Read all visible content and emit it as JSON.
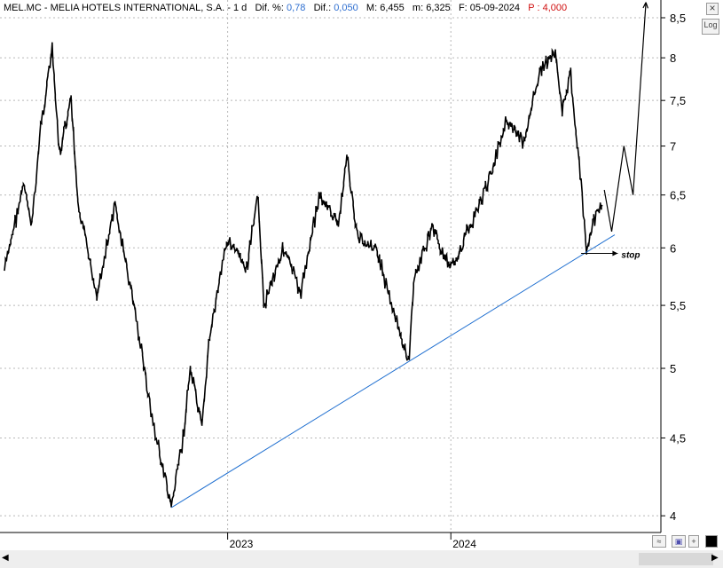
{
  "header": {
    "symbol": "MEL.MC",
    "name": "MELIA HOTELS INTERNATIONAL, S.A.",
    "period": "1 d",
    "dif_pct_label": "Dif. %:",
    "dif_pct_value": "0,78",
    "dif_label": "Dif.:",
    "dif_value": "0,050",
    "max_label": "M:",
    "max_value": "6,455",
    "min_label": "m:",
    "min_value": "6,325",
    "date_label": "F:",
    "date_value": "05-09-2024",
    "price_label": "P :",
    "price_value": "4,000"
  },
  "toolbar": {
    "log_label": "Log",
    "close_icon": "close-icon"
  },
  "colors": {
    "price": "#000000",
    "trendline": "#1f6fd0",
    "grid": "#b8b8b8",
    "text_blue": "#2f6fd0",
    "text_red": "#d01010"
  },
  "chart_data": {
    "type": "line",
    "scale": "log",
    "x_axis": {
      "ticks": [
        "2023",
        "2024"
      ]
    },
    "y_axis": {
      "ticks": [
        "4",
        "4,5",
        "5",
        "5,5",
        "6",
        "6,5",
        "7",
        "7,5",
        "8",
        "8,5"
      ],
      "ylim": [
        3.9,
        8.5
      ]
    },
    "grid": true,
    "series": [
      {
        "values": [
          {
            "x": "2022-01",
            "y": 5.8
          },
          {
            "x": "2022-02",
            "y": 6.6
          },
          {
            "x": "2022-02-15",
            "y": 6.2
          },
          {
            "x": "2022-03",
            "y": 7.2
          },
          {
            "x": "2022-03-20",
            "y": 8.1
          },
          {
            "x": "2022-04",
            "y": 6.9
          },
          {
            "x": "2022-04-20",
            "y": 7.5
          },
          {
            "x": "2022-05",
            "y": 6.4
          },
          {
            "x": "2022-06",
            "y": 5.6
          },
          {
            "x": "2022-07",
            "y": 6.4
          },
          {
            "x": "2022-07-20",
            "y": 5.8
          },
          {
            "x": "2022-08",
            "y": 5.5
          },
          {
            "x": "2022-09",
            "y": 4.6
          },
          {
            "x": "2022-10",
            "y": 4.05
          },
          {
            "x": "2022-10-20",
            "y": 4.5
          },
          {
            "x": "2022-11",
            "y": 5.0
          },
          {
            "x": "2022-11-20",
            "y": 4.55
          },
          {
            "x": "2022-12",
            "y": 5.2
          },
          {
            "x": "2023-01",
            "y": 6.1
          },
          {
            "x": "2023-02",
            "y": 5.8
          },
          {
            "x": "2023-02-20",
            "y": 6.5
          },
          {
            "x": "2023-03",
            "y": 5.5
          },
          {
            "x": "2023-04",
            "y": 6.0
          },
          {
            "x": "2023-05",
            "y": 5.6
          },
          {
            "x": "2023-05-20",
            "y": 6.2
          },
          {
            "x": "2023-06",
            "y": 6.5
          },
          {
            "x": "2023-07",
            "y": 6.2
          },
          {
            "x": "2023-07-15",
            "y": 6.9
          },
          {
            "x": "2023-08",
            "y": 6.1
          },
          {
            "x": "2023-09",
            "y": 6.0
          },
          {
            "x": "2023-10",
            "y": 5.4
          },
          {
            "x": "2023-10-25",
            "y": 5.05
          },
          {
            "x": "2023-11",
            "y": 5.7
          },
          {
            "x": "2023-12",
            "y": 6.2
          },
          {
            "x": "2024-01",
            "y": 5.8
          },
          {
            "x": "2024-02",
            "y": 6.2
          },
          {
            "x": "2024-03",
            "y": 6.6
          },
          {
            "x": "2024-04",
            "y": 7.3
          },
          {
            "x": "2024-05",
            "y": 7.0
          },
          {
            "x": "2024-05-15",
            "y": 7.6
          },
          {
            "x": "2024-06",
            "y": 7.9
          },
          {
            "x": "2024-06-20",
            "y": 8.1
          },
          {
            "x": "2024-07",
            "y": 7.4
          },
          {
            "x": "2024-07-15",
            "y": 7.8
          },
          {
            "x": "2024-08",
            "y": 6.6
          },
          {
            "x": "2024-08-10",
            "y": 5.95
          },
          {
            "x": "2024-08-25",
            "y": 6.3
          },
          {
            "x": "2024-09-05",
            "y": 6.4
          }
        ]
      }
    ],
    "annotations": [
      {
        "type": "trendline",
        "from": {
          "x": "2022-10",
          "y": 4.05
        },
        "to": {
          "x": "2024-09-25",
          "y": 6.12
        }
      },
      {
        "type": "stop-arrow",
        "y": 5.95,
        "label": "stop"
      },
      {
        "type": "projection",
        "points": [
          {
            "x": "2024-09-08",
            "y": 6.55
          },
          {
            "x": "2024-09-20",
            "y": 6.15
          },
          {
            "x": "2024-10-10",
            "y": 7.0
          },
          {
            "x": "2024-10-25",
            "y": 6.5
          },
          {
            "x": "2024-11-15",
            "y": 8.7
          }
        ]
      }
    ]
  }
}
